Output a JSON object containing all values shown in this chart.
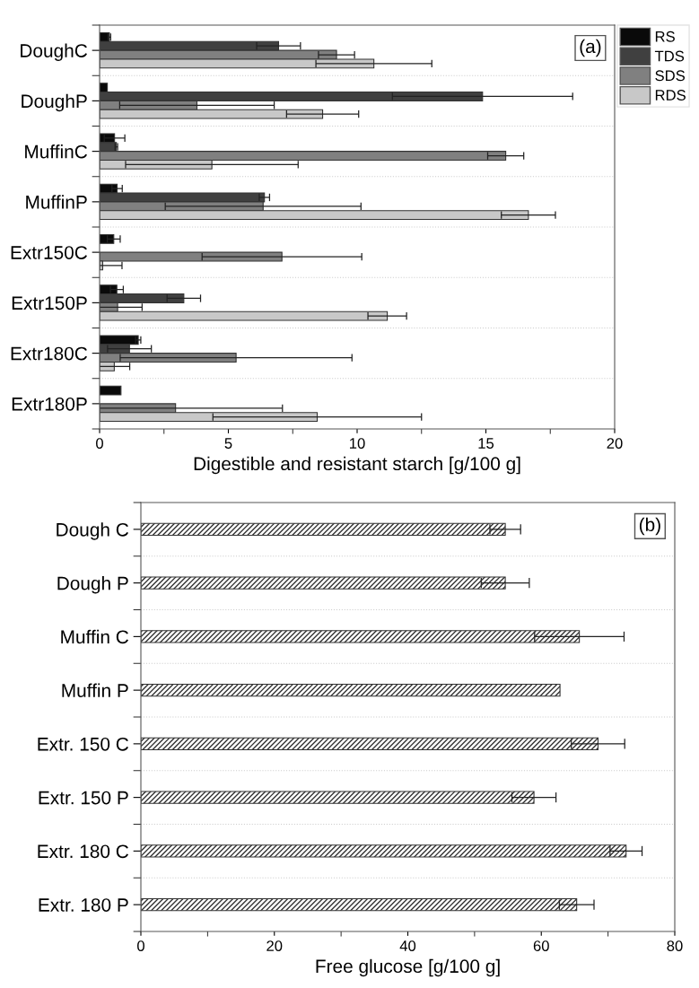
{
  "chart_data": [
    {
      "type": "bar",
      "orientation": "horizontal",
      "xlabel": "Digestible and resistant starch [g/100 g]",
      "categories": [
        "DoughC",
        "DoughP",
        "MuffinC",
        "MuffinP",
        "Extr150C",
        "Extr150P",
        "Extr180C",
        "Extr180P"
      ],
      "series": [
        {
          "name": "RS",
          "color": "#0a0a0a",
          "values": [
            0.38,
            0.3,
            0.58,
            0.68,
            0.55,
            0.67,
            1.5,
            0.83
          ],
          "errors": [
            0.05,
            null,
            0.4,
            0.2,
            0.25,
            0.25,
            0.1,
            null
          ]
        },
        {
          "name": "TDS",
          "color": "#404040",
          "values": [
            6.95,
            14.87,
            0.65,
            6.4,
            null,
            3.27,
            1.16,
            null
          ],
          "errors": [
            0.85,
            3.5,
            0.05,
            0.2,
            null,
            0.65,
            0.85,
            null
          ]
        },
        {
          "name": "SDS",
          "color": "#808080",
          "values": [
            9.2,
            3.78,
            15.77,
            6.35,
            7.08,
            0.7,
            5.3,
            2.95
          ],
          "errors": [
            0.7,
            3.0,
            0.7,
            3.8,
            3.1,
            0.95,
            4.5,
            4.15
          ]
        },
        {
          "name": "RDS",
          "color": "#c8c8c8",
          "values": [
            10.65,
            8.66,
            4.36,
            16.65,
            0.12,
            11.17,
            0.57,
            8.45
          ],
          "errors": [
            2.25,
            1.4,
            3.35,
            1.05,
            0.75,
            0.75,
            0.6,
            4.05
          ]
        }
      ],
      "xlim": [
        0,
        20
      ],
      "xticks": [
        0,
        5,
        10,
        15,
        20
      ],
      "grid": "y",
      "legend": "top right",
      "annotations": [
        "(a)"
      ]
    },
    {
      "type": "bar",
      "orientation": "horizontal",
      "xlabel": "Free glucose [g/100 g]",
      "categories": [
        "Dough C",
        "Dough P",
        "Muffin C",
        "Muffin P",
        "Extr. 150 C",
        "Extr. 150 P",
        "Extr. 180 C",
        "Extr. 180 P"
      ],
      "values": [
        54.6,
        54.6,
        65.7,
        62.8,
        68.5,
        58.9,
        72.7,
        65.3
      ],
      "errors": [
        2.3,
        3.6,
        6.7,
        null,
        4.0,
        3.3,
        2.4,
        2.6
      ],
      "color": "#333333",
      "xlim": [
        0,
        80
      ],
      "xticks": [
        0,
        20,
        40,
        60,
        80
      ],
      "grid": "y",
      "annotations": [
        "(b)"
      ]
    }
  ]
}
